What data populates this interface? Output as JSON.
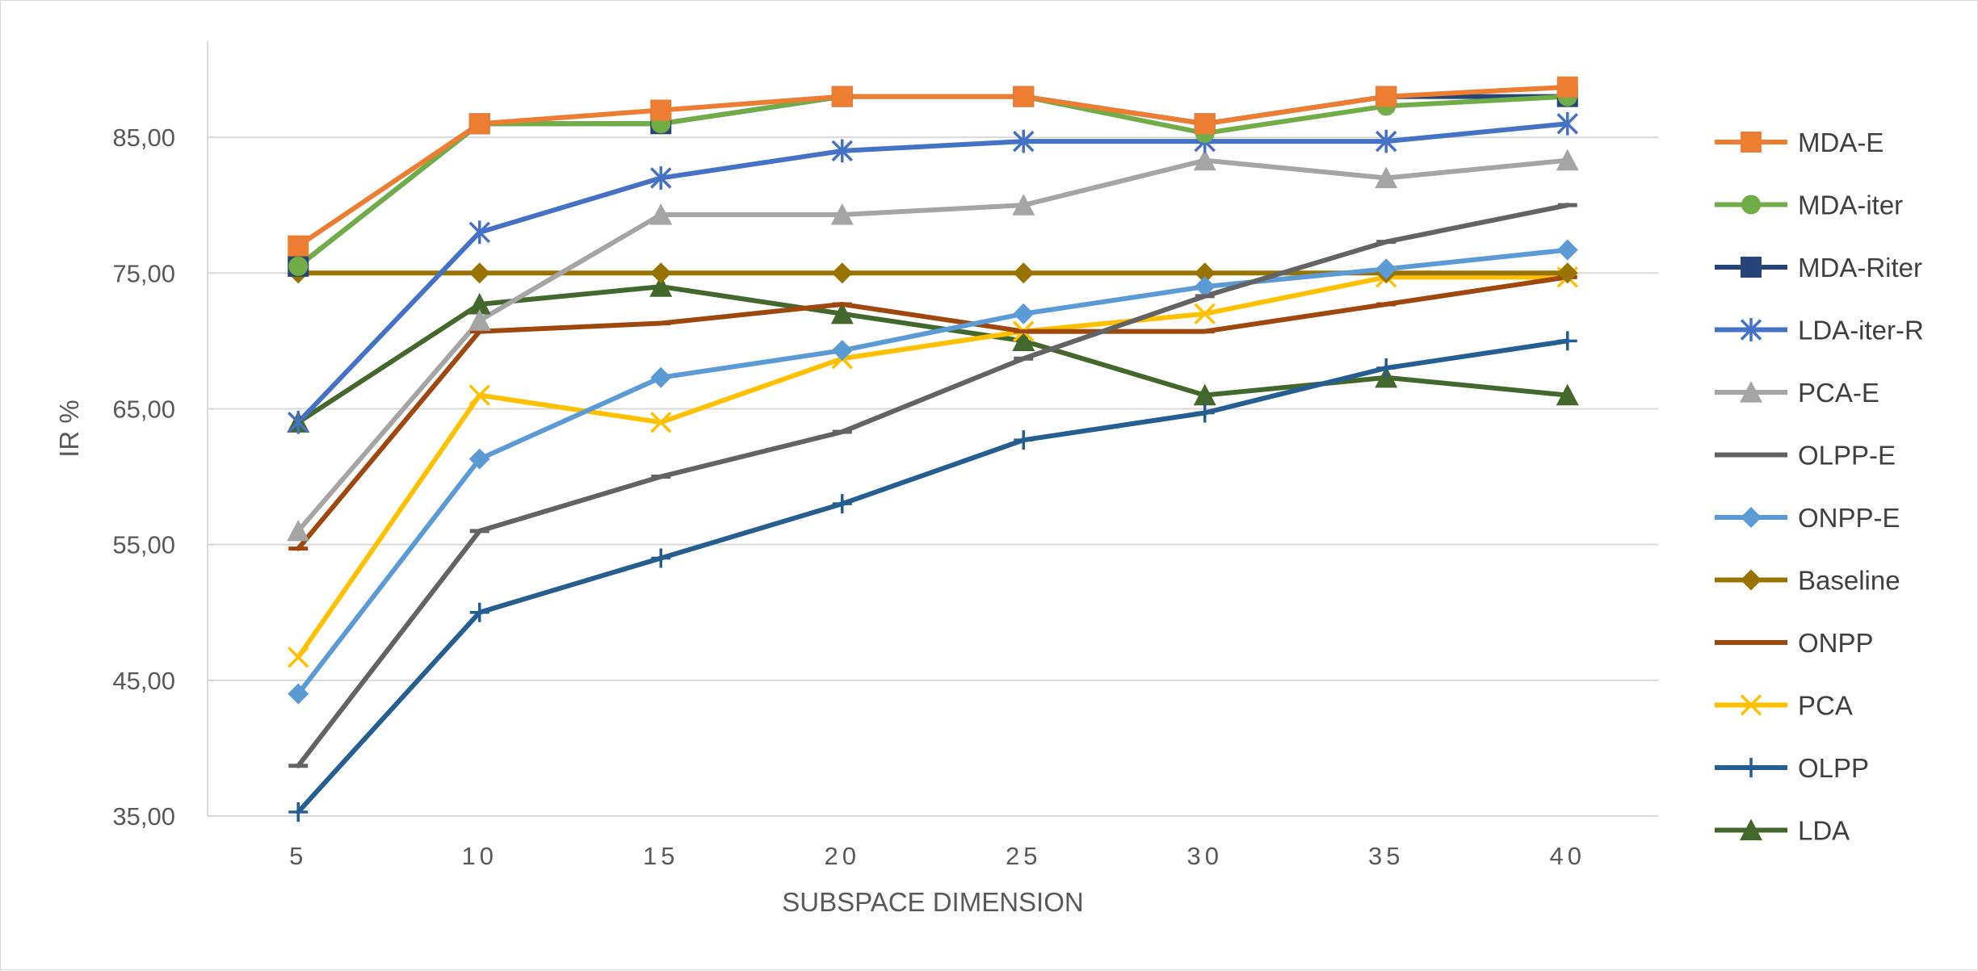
{
  "chart_data": {
    "type": "line",
    "title": "",
    "xlabel": "SUBSPACE DIMENSION",
    "ylabel": "IR %",
    "categories": [
      "5",
      "10",
      "15",
      "20",
      "25",
      "30",
      "35",
      "40"
    ],
    "yticks": [
      "35,00",
      "45,00",
      "55,00",
      "65,00",
      "75,00",
      "85,00"
    ],
    "ylim": [
      35,
      90
    ],
    "grid": true,
    "legend_position": "right",
    "series": [
      {
        "name": "MDA-E",
        "color": "#ED7D31",
        "marker": "square",
        "values": [
          77,
          86,
          87,
          88,
          88,
          86,
          88,
          88.7
        ]
      },
      {
        "name": "MDA-iter",
        "color": "#70AD47",
        "marker": "circle",
        "values": [
          75.5,
          86,
          86,
          88,
          88,
          85.3,
          87.3,
          88
        ]
      },
      {
        "name": "MDA-Riter",
        "color": "#264478",
        "marker": "square",
        "values": [
          75.5,
          86,
          86,
          88,
          88,
          86,
          88,
          88
        ]
      },
      {
        "name": "LDA-iter-R",
        "color": "#4472C4",
        "marker": "asterisk",
        "values": [
          64,
          78,
          82,
          84,
          84.7,
          84.7,
          84.7,
          86
        ]
      },
      {
        "name": "PCA-E",
        "color": "#A5A5A5",
        "marker": "triangle",
        "values": [
          56,
          71.5,
          79.3,
          79.3,
          80,
          83.3,
          82,
          83.3
        ]
      },
      {
        "name": "OLPP-E",
        "color": "#636363",
        "marker": "dash",
        "values": [
          38.7,
          56,
          60,
          63.3,
          68.7,
          73.3,
          77.3,
          80
        ]
      },
      {
        "name": "ONPP-E",
        "color": "#5B9BD5",
        "marker": "diamond",
        "values": [
          44,
          61.3,
          67.3,
          69.3,
          72,
          74,
          75.3,
          76.7
        ]
      },
      {
        "name": "Baseline",
        "color": "#997300",
        "marker": "diamond",
        "values": [
          75,
          75,
          75,
          75,
          75,
          75,
          75,
          75
        ]
      },
      {
        "name": "ONPP",
        "color": "#9E480E",
        "marker": "dash",
        "values": [
          54.7,
          70.7,
          71.3,
          72.7,
          70.7,
          70.7,
          72.7,
          74.7
        ]
      },
      {
        "name": "PCA",
        "color": "#FFC000",
        "marker": "x",
        "values": [
          46.7,
          66,
          64,
          68.7,
          70.7,
          72,
          74.7,
          74.7
        ]
      },
      {
        "name": "OLPP",
        "color": "#255E91",
        "marker": "plus",
        "values": [
          35.3,
          50,
          54,
          58,
          62.7,
          64.7,
          68,
          70
        ]
      },
      {
        "name": "LDA",
        "color": "#43682B",
        "marker": "triangle",
        "values": [
          64,
          72.7,
          74,
          72,
          70,
          66,
          67.3,
          66
        ]
      }
    ]
  }
}
